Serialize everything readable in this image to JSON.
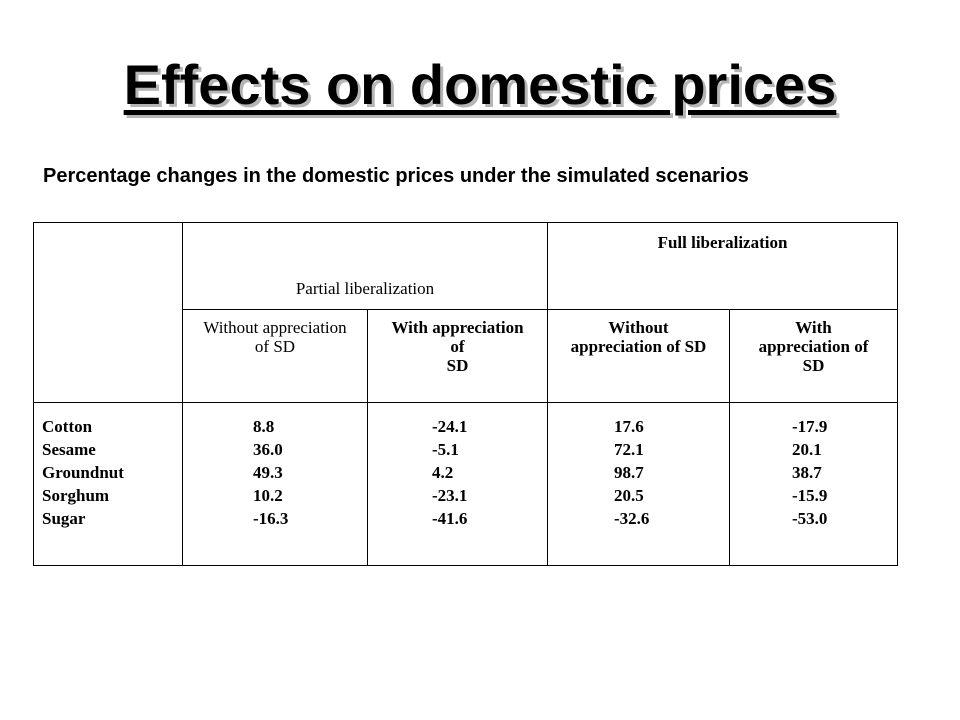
{
  "title": "Effects on domestic prices",
  "subtitle": "Percentage changes in the domestic prices under the simulated scenarios",
  "table": {
    "group_headers": {
      "partial": "Partial liberalization",
      "full": "Full liberalization"
    },
    "sub_headers": {
      "partial_without": "Without appreciation of SD",
      "partial_with_1": "With appreciation of",
      "partial_with_2": "SD",
      "full_without": "Without appreciation of SD",
      "full_with_1": "With appreciation of",
      "full_with_2": "SD"
    },
    "rows": [
      "Cotton",
      "Sesame",
      "Groundnut",
      "Sorghum",
      "Sugar"
    ],
    "columns": {
      "partial_without": [
        "8.8",
        "36.0",
        "49.3",
        "10.2",
        "-16.3"
      ],
      "partial_with": [
        "-24.1",
        "-5.1",
        "4.2",
        "-23.1",
        "-41.6"
      ],
      "full_without": [
        "17.6",
        "72.1",
        "98.7",
        "20.5",
        "-32.6"
      ],
      "full_with": [
        "-17.9",
        "20.1",
        "38.7",
        "-15.9",
        "-53.0"
      ]
    }
  }
}
